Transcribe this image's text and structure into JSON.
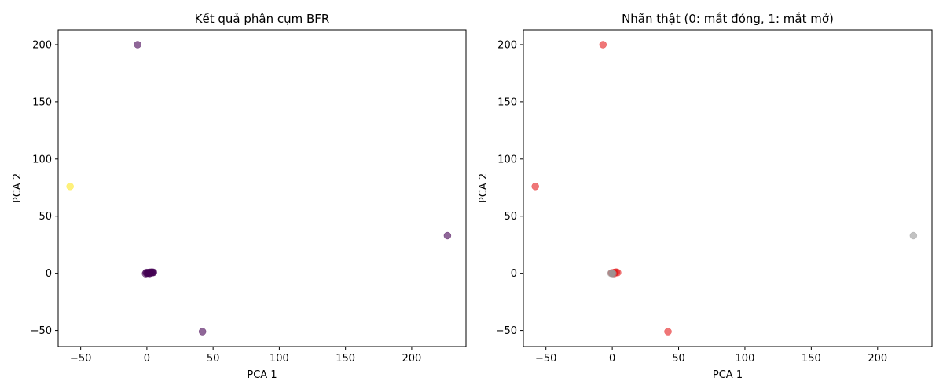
{
  "chart_data": [
    {
      "type": "scatter",
      "title": "Kết quả phân cụm BFR",
      "xlabel": "PCA 1",
      "ylabel": "PCA 2",
      "xlim": [
        -67,
        241
      ],
      "ylim": [
        -64,
        213
      ],
      "xticks": [
        -50,
        0,
        50,
        100,
        150,
        200
      ],
      "yticks": [
        -50,
        0,
        50,
        100,
        150,
        200
      ],
      "grid": false,
      "points": [
        {
          "x": 0,
          "y": 0,
          "color": "#440154"
        },
        {
          "x": 0.5,
          "y": 0.3,
          "color": "#440154"
        },
        {
          "x": 1,
          "y": 0.6,
          "color": "#440154"
        },
        {
          "x": 1.5,
          "y": 0.2,
          "color": "#440154"
        },
        {
          "x": 2,
          "y": 0.8,
          "color": "#440154"
        },
        {
          "x": 2.5,
          "y": 0.4,
          "color": "#440154"
        },
        {
          "x": 3,
          "y": 0.9,
          "color": "#440154"
        },
        {
          "x": 3.5,
          "y": 0.5,
          "color": "#440154"
        },
        {
          "x": 4,
          "y": 1,
          "color": "#440154"
        },
        {
          "x": 4.5,
          "y": 0.6,
          "color": "#440154"
        },
        {
          "x": 5,
          "y": 0.8,
          "color": "#440154"
        },
        {
          "x": -1,
          "y": -0.3,
          "color": "#440154"
        },
        {
          "x": -0.5,
          "y": 0.7,
          "color": "#440154"
        },
        {
          "x": 2,
          "y": -0.2,
          "color": "#440154"
        },
        {
          "x": -7,
          "y": 200,
          "color": "#440154"
        },
        {
          "x": -58,
          "y": 76,
          "color": "#fde725"
        },
        {
          "x": 227,
          "y": 33,
          "color": "#440154"
        },
        {
          "x": 42,
          "y": -51,
          "color": "#440154"
        }
      ]
    },
    {
      "type": "scatter",
      "title": "Nhãn thật (0: mắt đóng, 1: mắt mở)",
      "xlabel": "PCA 1",
      "ylabel": "PCA 2",
      "xlim": [
        -67,
        241
      ],
      "ylim": [
        -64,
        213
      ],
      "xticks": [
        -50,
        0,
        50,
        100,
        150,
        200
      ],
      "yticks": [
        -50,
        0,
        50,
        100,
        150,
        200
      ],
      "grid": false,
      "points": [
        {
          "x": 0,
          "y": 0,
          "color": "#e41a1c"
        },
        {
          "x": 1,
          "y": 0.5,
          "color": "#e41a1c"
        },
        {
          "x": 2,
          "y": 0.8,
          "color": "#e41a1c"
        },
        {
          "x": 3,
          "y": 1,
          "color": "#e41a1c"
        },
        {
          "x": 4,
          "y": 0.6,
          "color": "#e41a1c"
        },
        {
          "x": 1.5,
          "y": -0.2,
          "color": "#e41a1c"
        },
        {
          "x": -0.5,
          "y": 0.3,
          "color": "#e41a1c"
        },
        {
          "x": -1,
          "y": 0,
          "color": "#999999"
        },
        {
          "x": 0,
          "y": 0.2,
          "color": "#999999"
        },
        {
          "x": 0.5,
          "y": -0.3,
          "color": "#999999"
        },
        {
          "x": -7,
          "y": 200,
          "color": "#e41a1c"
        },
        {
          "x": -58,
          "y": 76,
          "color": "#e41a1c"
        },
        {
          "x": 227,
          "y": 33,
          "color": "#999999"
        },
        {
          "x": 42,
          "y": -51,
          "color": "#e41a1c"
        }
      ]
    }
  ]
}
